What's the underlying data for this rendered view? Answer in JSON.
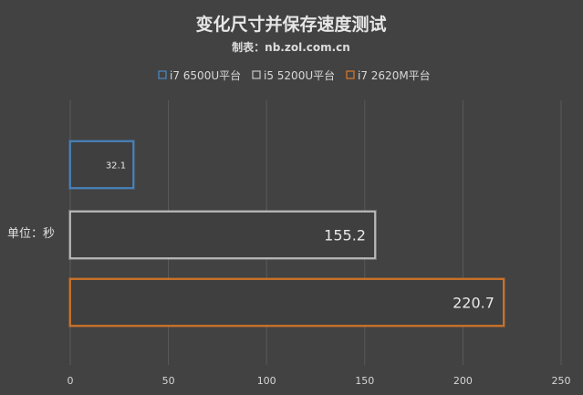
{
  "chart_data": {
    "type": "bar",
    "orientation": "horizontal",
    "title": "变化尺寸并保存速度测试",
    "subtitle": "制表：nb.zol.com.cn",
    "ylabel": "单位：秒",
    "xlim": [
      0,
      250
    ],
    "xticks": [
      0,
      50,
      100,
      150,
      200,
      250
    ],
    "grid": true,
    "legend_position": "top",
    "series": [
      {
        "name": "i7 6500U平台",
        "value": 32.1,
        "label": "32.1",
        "color": "#4a8ac8"
      },
      {
        "name": "i5 5200U平台",
        "value": 155.2,
        "label": "155.2",
        "color": "#c8c8c8"
      },
      {
        "name": "i7 2620M平台",
        "value": 220.7,
        "label": "220.7",
        "color": "#e07a24"
      }
    ]
  }
}
